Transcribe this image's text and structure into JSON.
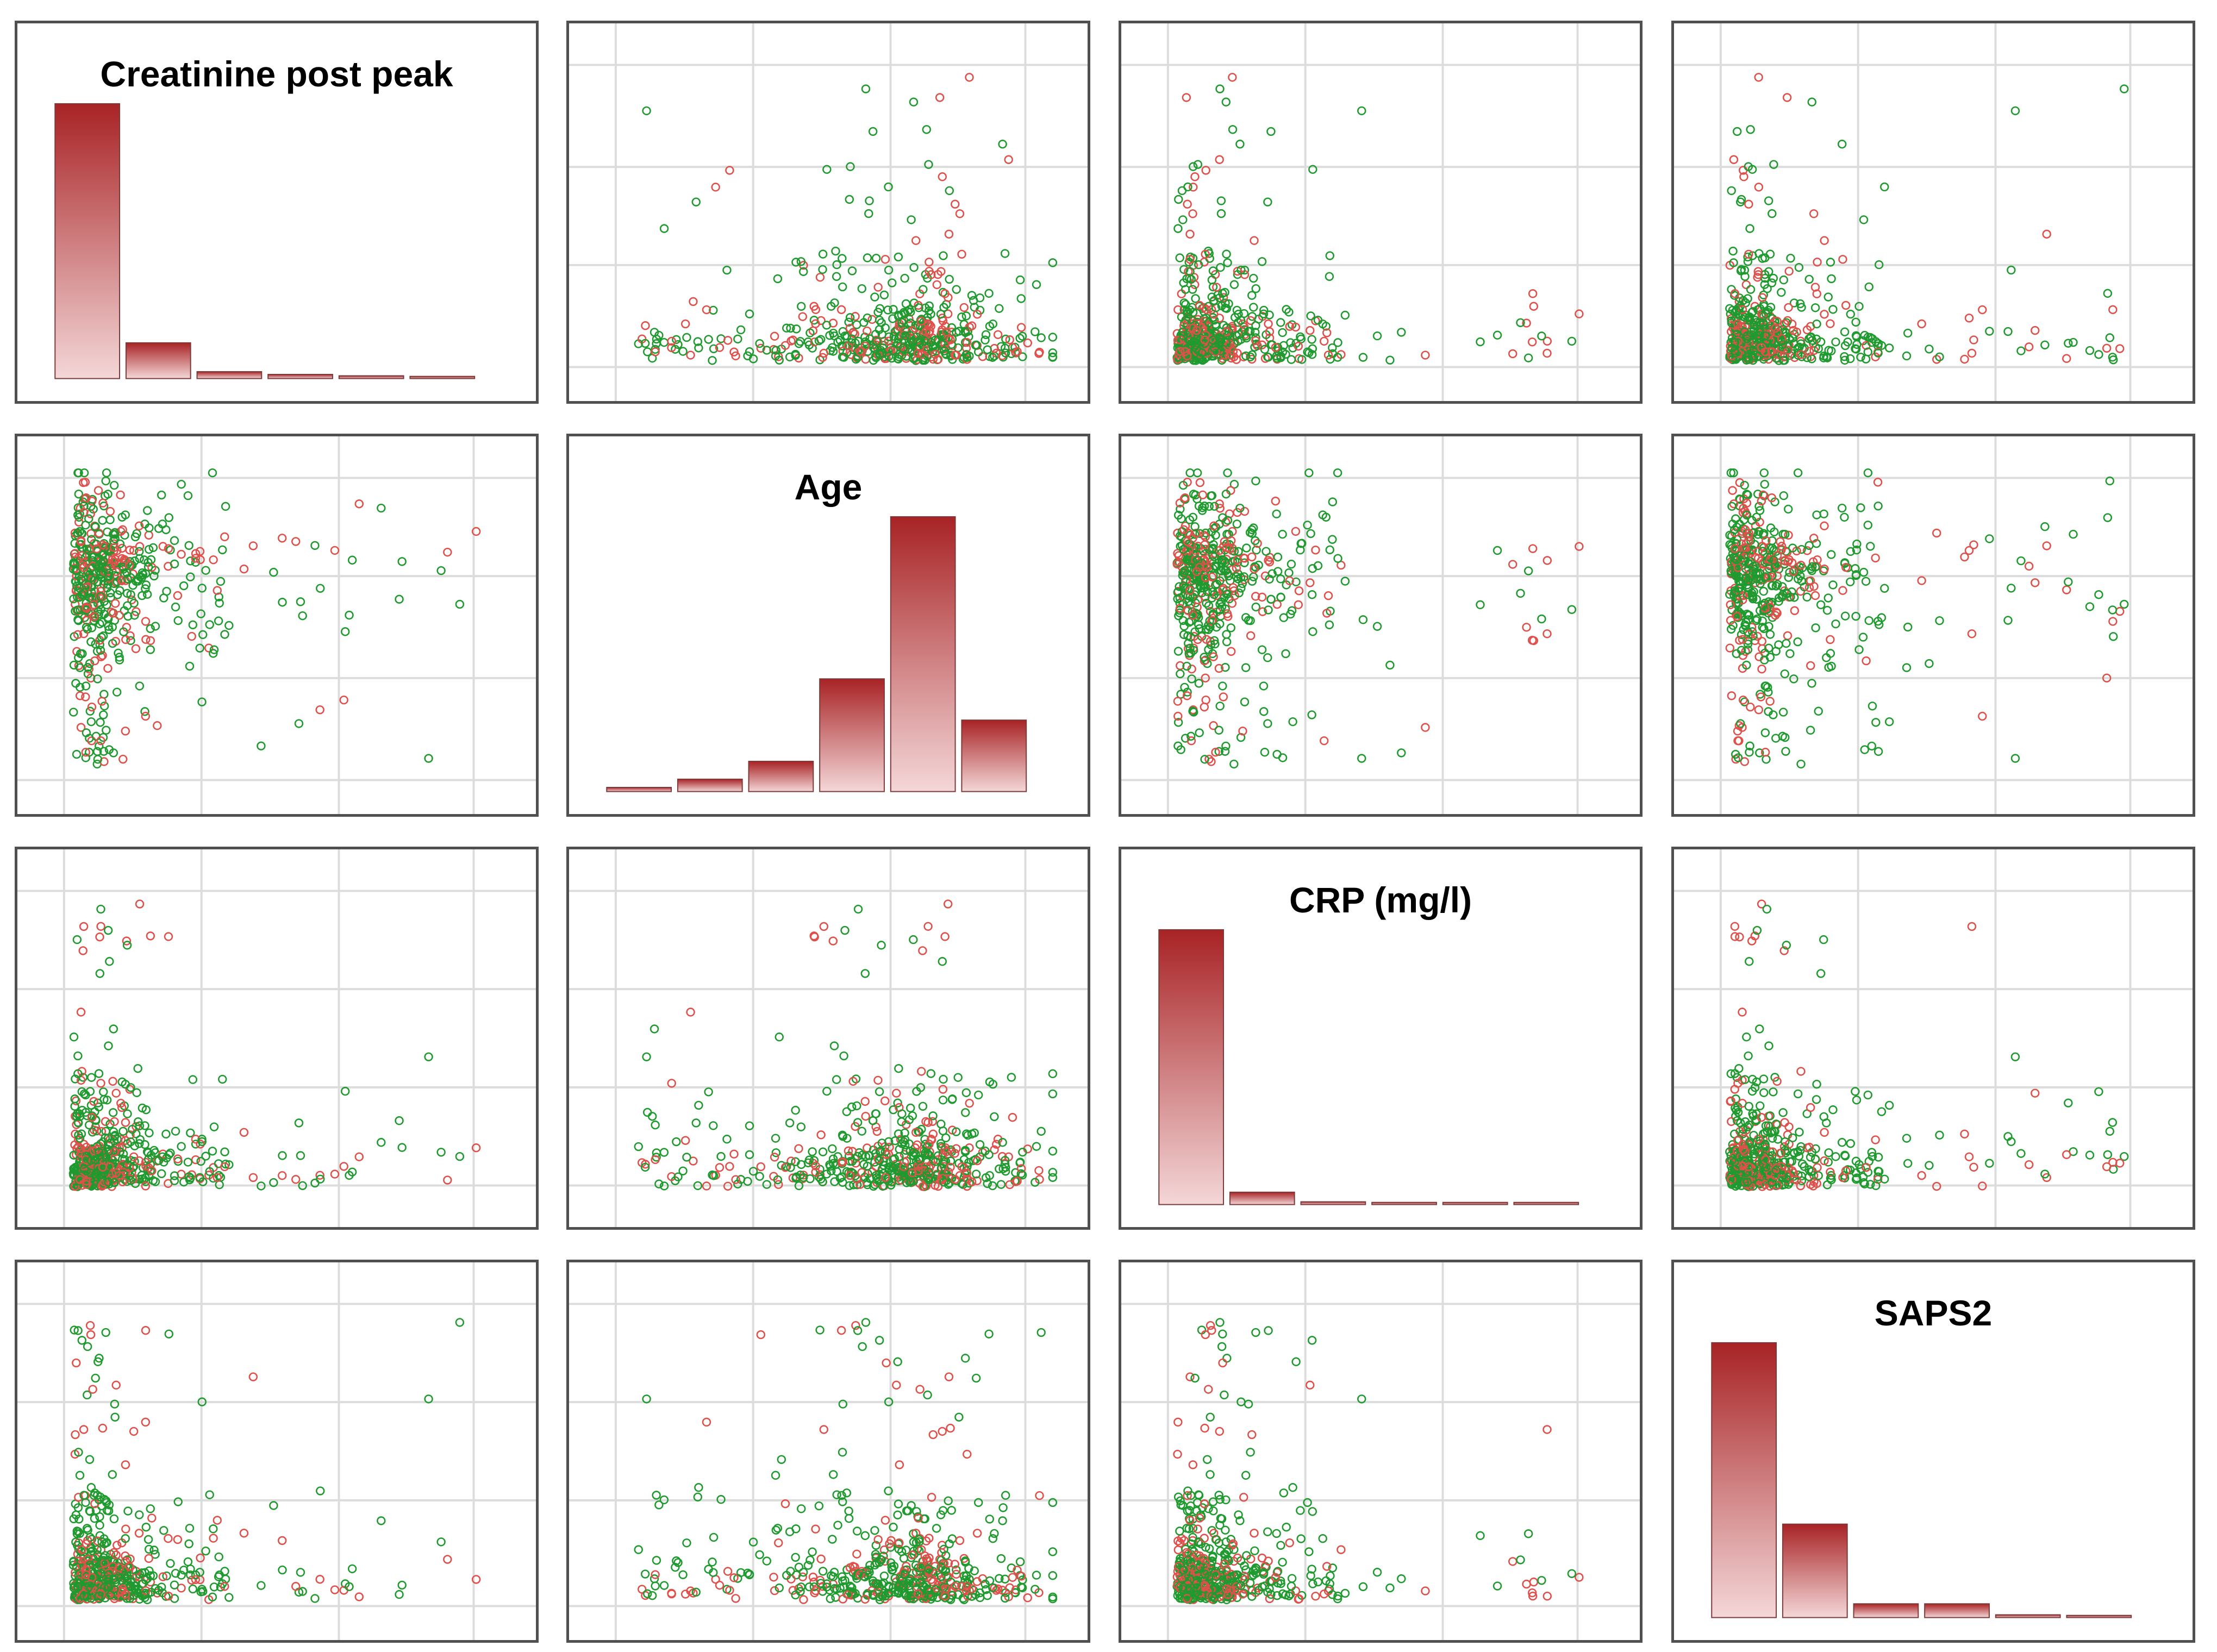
{
  "variables": [
    "Creatinine post peak",
    "Age",
    "CRP (mg/l)",
    "SAPS2"
  ],
  "colors": {
    "group_red": "#e0504b",
    "group_green": "#1f9a2e",
    "bar_top": "#a82325",
    "bar_bottom": "#f4d7d8",
    "grid": "#dcdcdc",
    "border": "#505050"
  },
  "chart_data": {
    "type": "scatter-matrix",
    "diagonal_type": "bar",
    "grid": true,
    "histograms": [
      {
        "variable": "Creatinine post peak",
        "values": [
          100,
          13,
          2.5,
          1.5,
          1,
          0.5
        ]
      },
      {
        "variable": "Age",
        "values": [
          1.5,
          4.5,
          11,
          41,
          100,
          26
        ]
      },
      {
        "variable": "CRP (mg/l)",
        "values": [
          100,
          4.5,
          1,
          0.5,
          0.5,
          0.5
        ]
      },
      {
        "variable": "SAPS2",
        "values": [
          100,
          34,
          5,
          5,
          1,
          0.5
        ]
      }
    ],
    "point_series": [
      {
        "color": "red",
        "share": 0.35
      },
      {
        "color": "green",
        "share": 0.65
      }
    ]
  }
}
